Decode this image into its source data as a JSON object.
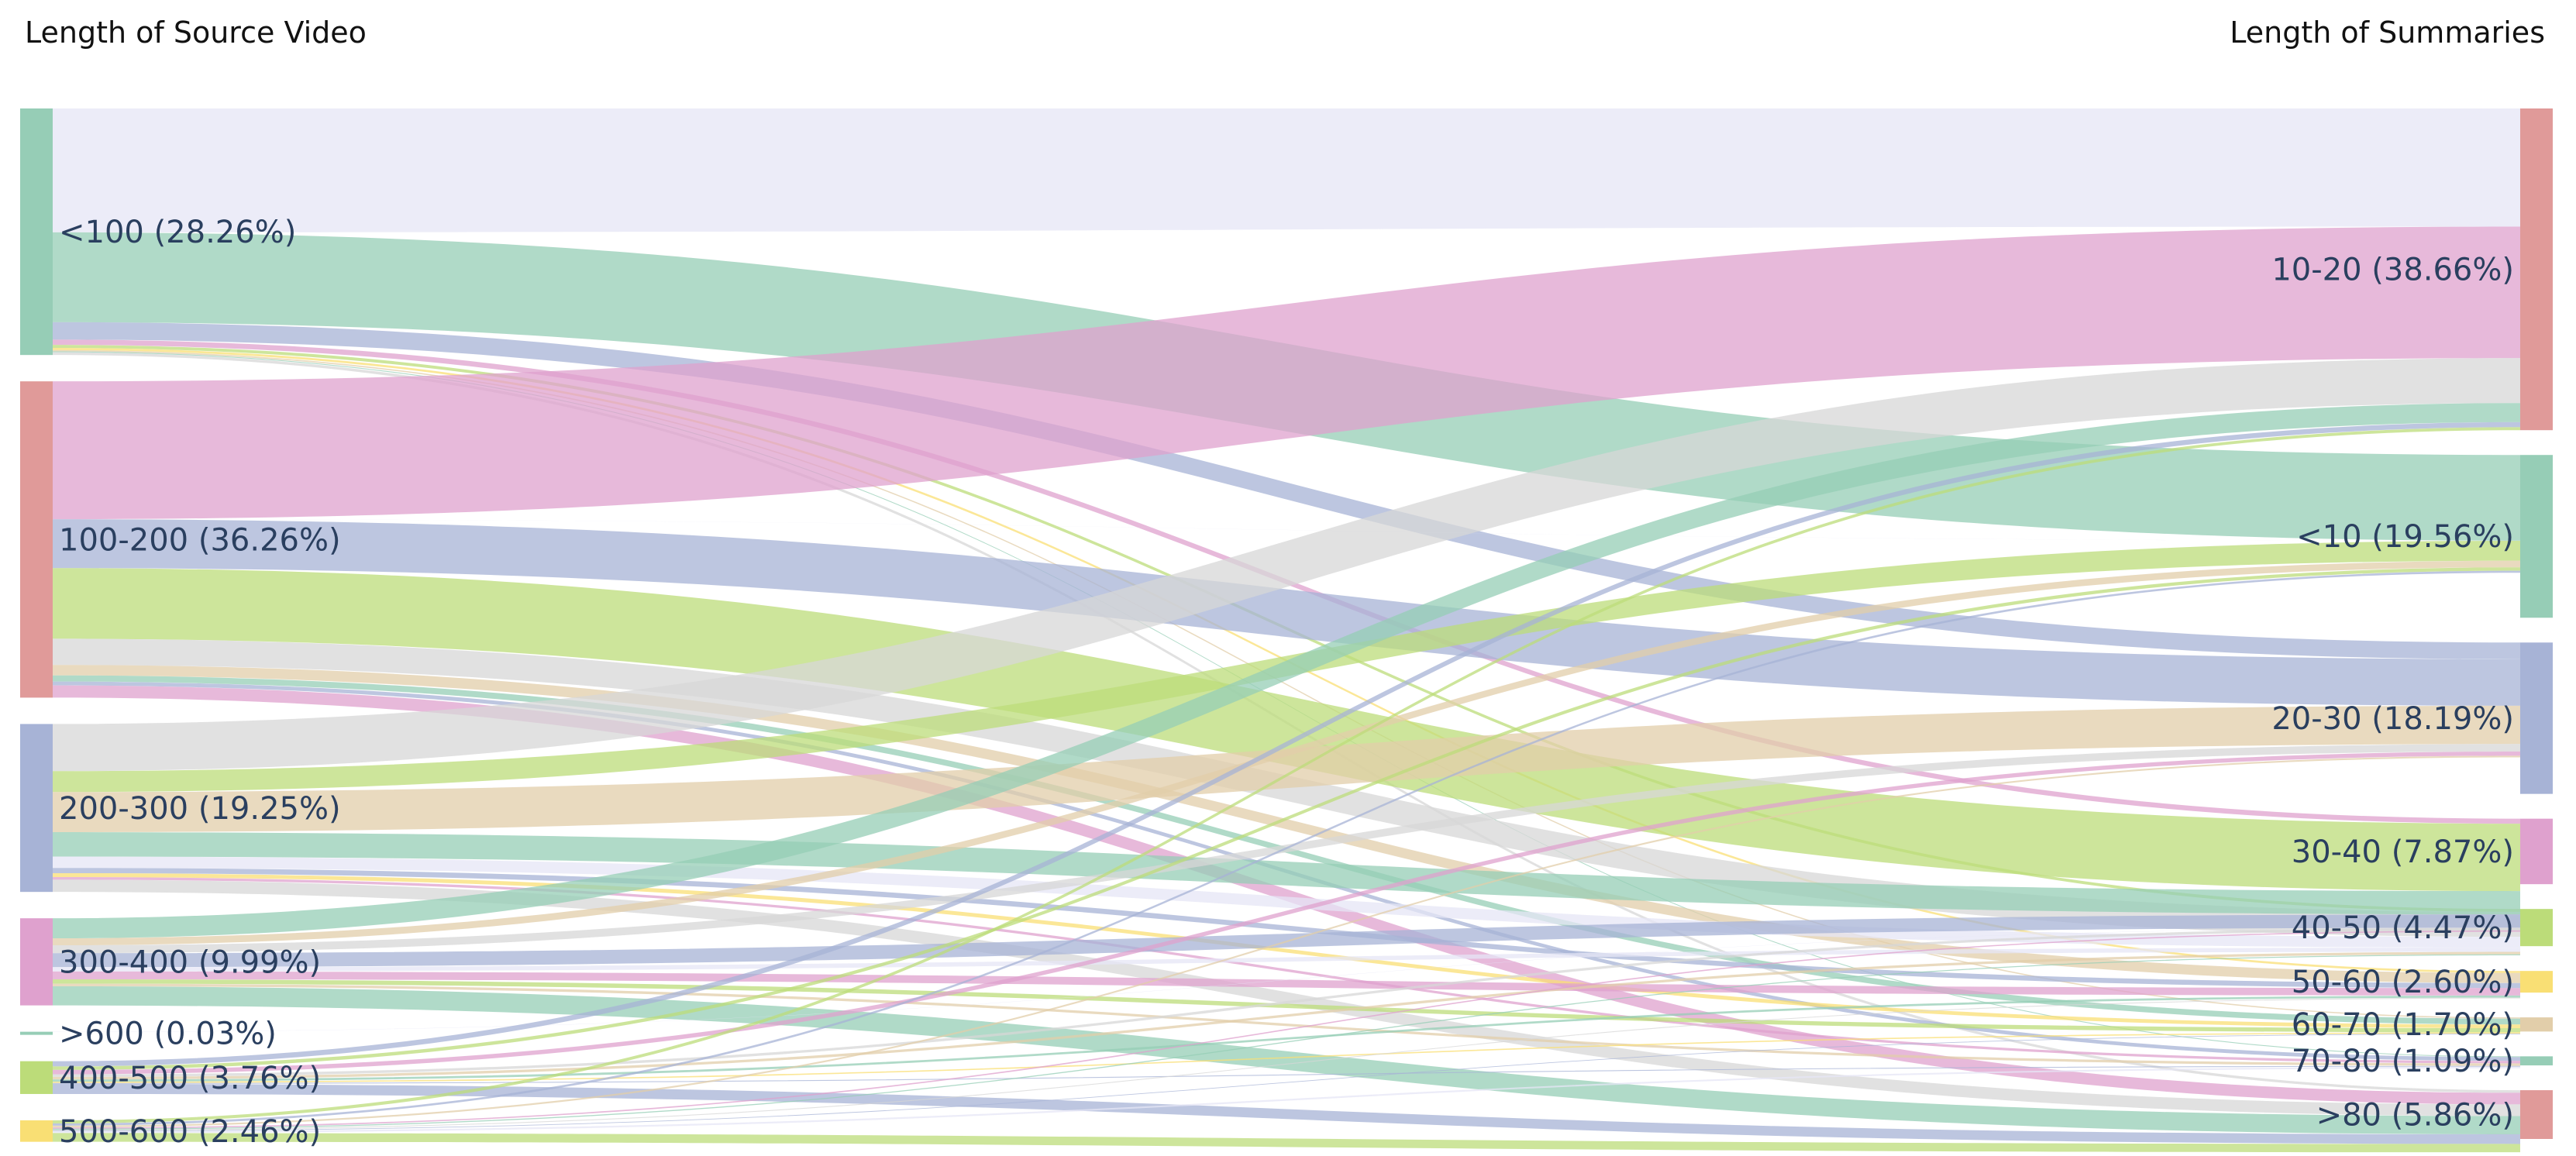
{
  "chart_data": {
    "type": "sankey",
    "left_header": "Length of Source Video",
    "right_header": "Length of Summaries",
    "palette": [
      "#96CDB6",
      "#E09A99",
      "#A7B3D6",
      "#DFA1CE",
      "#BCDC79",
      "#F9DF74",
      "#E2CEAA",
      "#D7D7D7"
    ],
    "sources": [
      {
        "id": "s0",
        "label": "<100 (28.26%)",
        "value": 28.26,
        "color": "#96CDB6"
      },
      {
        "id": "s1",
        "label": "100-200 (36.26%)",
        "value": 36.26,
        "color": "#E09A99"
      },
      {
        "id": "s2",
        "label": "200-300 (19.25%)",
        "value": 19.25,
        "color": "#A7B3D6"
      },
      {
        "id": "s3",
        "label": "300-400 (9.99%)",
        "value": 9.99,
        "color": "#DFA1CE"
      },
      {
        "id": "s4",
        "label": ">600 (0.03%)",
        "value": 0.03,
        "color": "#96CDB6"
      },
      {
        "id": "s5",
        "label": "400-500 (3.76%)",
        "value": 3.76,
        "color": "#BCDC79"
      },
      {
        "id": "s6",
        "label": "500-600 (2.46%)",
        "value": 2.46,
        "color": "#F9DF74"
      }
    ],
    "targets": [
      {
        "id": "t0",
        "label": "10-20 (38.66%)",
        "value": 38.66,
        "color": "#E09A99"
      },
      {
        "id": "t1",
        "label": "<10 (19.56%)",
        "value": 19.56,
        "color": "#96CDB6"
      },
      {
        "id": "t2",
        "label": "20-30 (18.19%)",
        "value": 18.19,
        "color": "#A7B3D6"
      },
      {
        "id": "t3",
        "label": "30-40 (7.87%)",
        "value": 7.87,
        "color": "#DFA1CE"
      },
      {
        "id": "t4",
        "label": "40-50 (4.47%)",
        "value": 4.47,
        "color": "#BCDC79"
      },
      {
        "id": "t5",
        "label": "50-60 (2.60%)",
        "value": 2.6,
        "color": "#F9DF74"
      },
      {
        "id": "t6",
        "label": "60-70 (1.70%)",
        "value": 1.7,
        "color": "#E2CEAA"
      },
      {
        "id": "t7",
        "label": "70-80 (1.09%)",
        "value": 1.09,
        "color": "#96CDB6"
      },
      {
        "id": "t8",
        "label": ">80 (5.86%)",
        "value": 5.86,
        "color": "#E09A99"
      }
    ],
    "flows": [
      {
        "source": "s0",
        "target": "t0",
        "value": 14.2,
        "color": "#E5E5F5"
      },
      {
        "source": "s0",
        "target": "t1",
        "value": 10.3,
        "color": "#96CDB6"
      },
      {
        "source": "s0",
        "target": "t2",
        "value": 2.0,
        "color": "#A7B3D6"
      },
      {
        "source": "s0",
        "target": "t3",
        "value": 0.6,
        "color": "#DFA1CE"
      },
      {
        "source": "s0",
        "target": "t4",
        "value": 0.35,
        "color": "#BCDC79"
      },
      {
        "source": "s0",
        "target": "t5",
        "value": 0.25,
        "color": "#F9DF74"
      },
      {
        "source": "s0",
        "target": "t6",
        "value": 0.15,
        "color": "#E2CEAA"
      },
      {
        "source": "s0",
        "target": "t7",
        "value": 0.1,
        "color": "#96CDB6"
      },
      {
        "source": "s0",
        "target": "t8",
        "value": 0.31,
        "color": "#D7D7D7"
      },
      {
        "source": "s1",
        "target": "t0",
        "value": 15.8,
        "color": "#DFA1CE"
      },
      {
        "source": "s1",
        "target": "t1",
        "value": 0.01,
        "color": "#E5E5F5"
      },
      {
        "source": "s1",
        "target": "t2",
        "value": 5.6,
        "color": "#A7B3D6"
      },
      {
        "source": "s1",
        "target": "t3",
        "value": 8.1,
        "color": "#BCDC79"
      },
      {
        "source": "s1",
        "target": "t4",
        "value": 3.0,
        "color": "#D7D7D7"
      },
      {
        "source": "s1",
        "target": "t5",
        "value": 1.2,
        "color": "#E2CEAA"
      },
      {
        "source": "s1",
        "target": "t6",
        "value": 0.7,
        "color": "#96CDB6"
      },
      {
        "source": "s1",
        "target": "t7",
        "value": 0.45,
        "color": "#A7B3D6"
      },
      {
        "source": "s1",
        "target": "t8",
        "value": 1.4,
        "color": "#DFA1CE"
      },
      {
        "source": "s2",
        "target": "t0",
        "value": 5.4,
        "color": "#D7D7D7"
      },
      {
        "source": "s2",
        "target": "t1",
        "value": 2.4,
        "color": "#BCDC79"
      },
      {
        "source": "s2",
        "target": "t2",
        "value": 4.6,
        "color": "#E2CEAA"
      },
      {
        "source": "s2",
        "target": "t3",
        "value": 2.8,
        "color": "#96CDB6"
      },
      {
        "source": "s2",
        "target": "t4",
        "value": 1.3,
        "color": "#E5E5F5"
      },
      {
        "source": "s2",
        "target": "t5",
        "value": 0.6,
        "color": "#A7B3D6"
      },
      {
        "source": "s2",
        "target": "t6",
        "value": 0.45,
        "color": "#F9DF74"
      },
      {
        "source": "s2",
        "target": "t7",
        "value": 0.3,
        "color": "#DFA1CE"
      },
      {
        "source": "s2",
        "target": "t8",
        "value": 1.4,
        "color": "#D7D7D7"
      },
      {
        "source": "s3",
        "target": "t0",
        "value": 2.3,
        "color": "#96CDB6"
      },
      {
        "source": "s3",
        "target": "t1",
        "value": 0.8,
        "color": "#E2CEAA"
      },
      {
        "source": "s3",
        "target": "t2",
        "value": 0.9,
        "color": "#D7D7D7"
      },
      {
        "source": "s3",
        "target": "t3",
        "value": 1.6,
        "color": "#A7B3D6"
      },
      {
        "source": "s3",
        "target": "t4",
        "value": 0.5,
        "color": "#E5E5F5"
      },
      {
        "source": "s3",
        "target": "t5",
        "value": 0.9,
        "color": "#DFA1CE"
      },
      {
        "source": "s3",
        "target": "t6",
        "value": 0.5,
        "color": "#BCDC79"
      },
      {
        "source": "s3",
        "target": "t7",
        "value": 0.3,
        "color": "#E2CEAA"
      },
      {
        "source": "s3",
        "target": "t8",
        "value": 2.19,
        "color": "#96CDB6"
      },
      {
        "source": "s4",
        "target": "t3",
        "value": 0.03,
        "color": "#E5E5F5"
      },
      {
        "source": "s5",
        "target": "t0",
        "value": 0.6,
        "color": "#A7B3D6"
      },
      {
        "source": "s5",
        "target": "t1",
        "value": 0.4,
        "color": "#BCDC79"
      },
      {
        "source": "s5",
        "target": "t2",
        "value": 0.5,
        "color": "#DFA1CE"
      },
      {
        "source": "s5",
        "target": "t3",
        "value": 0.3,
        "color": "#D7D7D7"
      },
      {
        "source": "s5",
        "target": "t4",
        "value": 0.3,
        "color": "#E2CEAA"
      },
      {
        "source": "s5",
        "target": "t5",
        "value": 0.25,
        "color": "#96CDB6"
      },
      {
        "source": "s5",
        "target": "t6",
        "value": 0.15,
        "color": "#F9DF74"
      },
      {
        "source": "s5",
        "target": "t7",
        "value": 0.1,
        "color": "#A7B3D6"
      },
      {
        "source": "s5",
        "target": "t8",
        "value": 1.16,
        "color": "#A7B3D6"
      },
      {
        "source": "s6",
        "target": "t0",
        "value": 0.36,
        "color": "#BCDC79"
      },
      {
        "source": "s6",
        "target": "t1",
        "value": 0.25,
        "color": "#A7B3D6"
      },
      {
        "source": "s6",
        "target": "t2",
        "value": 0.2,
        "color": "#E2CEAA"
      },
      {
        "source": "s6",
        "target": "t3",
        "value": 0.15,
        "color": "#DFA1CE"
      },
      {
        "source": "s6",
        "target": "t4",
        "value": 0.12,
        "color": "#96CDB6"
      },
      {
        "source": "s6",
        "target": "t5",
        "value": 0.1,
        "color": "#D7D7D7"
      },
      {
        "source": "s6",
        "target": "t6",
        "value": 0.08,
        "color": "#A7B3D6"
      },
      {
        "source": "s6",
        "target": "t7",
        "value": 0.2,
        "color": "#E5E5F5"
      },
      {
        "source": "s6",
        "target": "t8",
        "value": 1.0,
        "color": "#BCDC79"
      }
    ]
  }
}
